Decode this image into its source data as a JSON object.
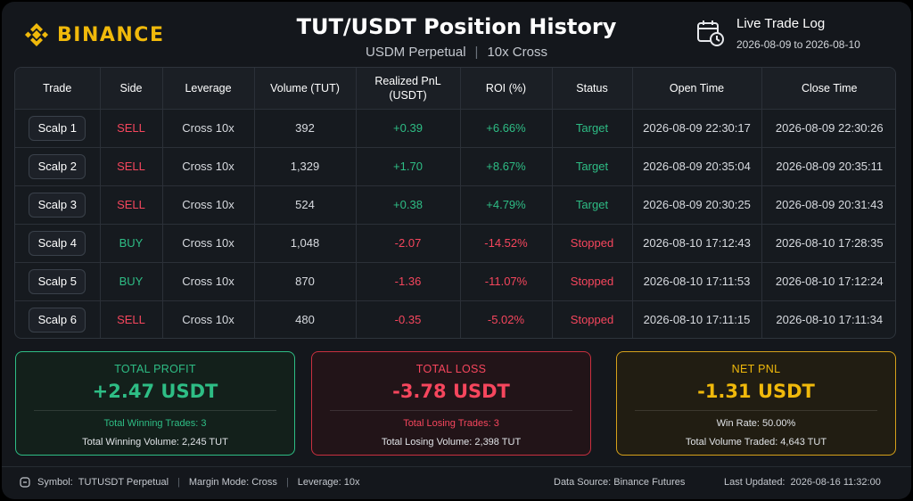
{
  "brand": {
    "logo_text": "BINANCE",
    "color": "#f0b90b"
  },
  "header": {
    "title": "TUT/USDT Position History",
    "market": "USDM Perpetual",
    "mode": "10x Cross",
    "live_title": "Live Trade Log",
    "range_start": "2026-08-09",
    "range_sep": "to",
    "range_end": "2026-08-10"
  },
  "table": {
    "columns": [
      "Trade",
      "Side",
      "Leverage",
      "Volume (TUT)",
      "Realized PnL",
      "(USDT)",
      "ROI (%)",
      "Status",
      "Open Time",
      "Close Time"
    ],
    "rows": [
      {
        "trade": "Scalp 1",
        "side": "SELL",
        "leverage": "Cross 10x",
        "volume": "392",
        "pnl": "+0.39",
        "roi": "+6.66%",
        "status": "Target",
        "open": "2026-08-09 22:30:17",
        "close": "2026-08-09 22:30:26"
      },
      {
        "trade": "Scalp 2",
        "side": "SELL",
        "leverage": "Cross 10x",
        "volume": "1,329",
        "pnl": "+1.70",
        "roi": "+8.67%",
        "status": "Target",
        "open": "2026-08-09 20:35:04",
        "close": "2026-08-09 20:35:11"
      },
      {
        "trade": "Scalp 3",
        "side": "SELL",
        "leverage": "Cross 10x",
        "volume": "524",
        "pnl": "+0.38",
        "roi": "+4.79%",
        "status": "Target",
        "open": "2026-08-09 20:30:25",
        "close": "2026-08-09 20:31:43"
      },
      {
        "trade": "Scalp 4",
        "side": "BUY",
        "leverage": "Cross 10x",
        "volume": "1,048",
        "pnl": "-2.07",
        "roi": "-14.52%",
        "status": "Stopped",
        "open": "2026-08-10 17:12:43",
        "close": "2026-08-10 17:28:35"
      },
      {
        "trade": "Scalp 5",
        "side": "BUY",
        "leverage": "Cross 10x",
        "volume": "870",
        "pnl": "-1.36",
        "roi": "-11.07%",
        "status": "Stopped",
        "open": "2026-08-10 17:11:53",
        "close": "2026-08-10 17:12:24"
      },
      {
        "trade": "Scalp 6",
        "side": "SELL",
        "leverage": "Cross 10x",
        "volume": "480",
        "pnl": "-0.35",
        "roi": "-5.02%",
        "status": "Stopped",
        "open": "2026-08-10 17:11:15",
        "close": "2026-08-10 17:11:34"
      }
    ]
  },
  "summary": {
    "profit": {
      "label": "TOTAL PROFIT",
      "value": "+2.47 USDT",
      "line1": "Total Winning Trades: 3",
      "line2": "Total Winning Volume: 2,245 TUT"
    },
    "loss": {
      "label": "TOTAL LOSS",
      "value": "-3.78 USDT",
      "line1": "Total Losing Trades: 3",
      "line2": "Total Losing Volume: 2,398 TUT"
    },
    "net": {
      "label": "NET PNL",
      "value": "-1.31 USDT",
      "line1": "Win Rate: 50.00%",
      "line2": "Total Volume Traded: 4,643 TUT"
    }
  },
  "footer": {
    "symbol_key": "Symbol:",
    "symbol": "TUTUSDT Perpetual",
    "margin": "Margin Mode: Cross",
    "leverage": "Leverage: 10x",
    "source": "Data Source: Binance Futures",
    "updated_key": "Last Updated:",
    "updated": "2026-08-16 11:32:00"
  },
  "colors": {
    "positive": "#2ebd85",
    "negative": "#f6465d",
    "accent": "#f0b90b",
    "background": "#14171c"
  },
  "icons": [
    "binance-logo-icon",
    "calendar-clock-icon",
    "info-icon"
  ]
}
